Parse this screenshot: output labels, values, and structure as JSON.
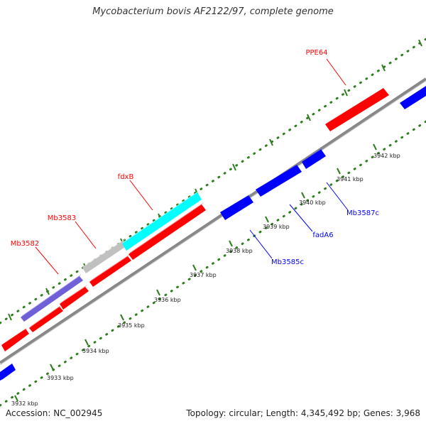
{
  "title": "Mycobacterium bovis AF2122/97, complete genome",
  "footer": {
    "accession": "Accession: NC_002945",
    "summary": "Topology: circular; Length: 4,345,492 bp; Genes: 3,968"
  },
  "colors": {
    "forward_gene": "#ff0000",
    "reverse_gene": "#0000ff",
    "backbone": "#888888",
    "tick": "#2e7d1e",
    "highlight_cyan": "#00ffff",
    "highlight_gray": "#c0c0c0",
    "highlight_purple": "#7060d8"
  },
  "axis_labels": [
    "3932 kbp",
    "3933 kbp",
    "3934 kbp",
    "3935 kbp",
    "3936 kbp",
    "3937 kbp",
    "3938 kbp",
    "3939 kbp",
    "3940 kbp",
    "3941 kbp",
    "3942 kbp"
  ],
  "gene_labels": [
    {
      "name": "PPE64",
      "strand": "forward"
    },
    {
      "name": "fdxB",
      "strand": "forward"
    },
    {
      "name": "Mb3583",
      "strand": "forward"
    },
    {
      "name": "Mb3582",
      "strand": "forward"
    },
    {
      "name": "Mb3585c",
      "strand": "reverse"
    },
    {
      "name": "fadA6",
      "strand": "reverse"
    },
    {
      "name": "Mb3587c",
      "strand": "reverse"
    }
  ]
}
